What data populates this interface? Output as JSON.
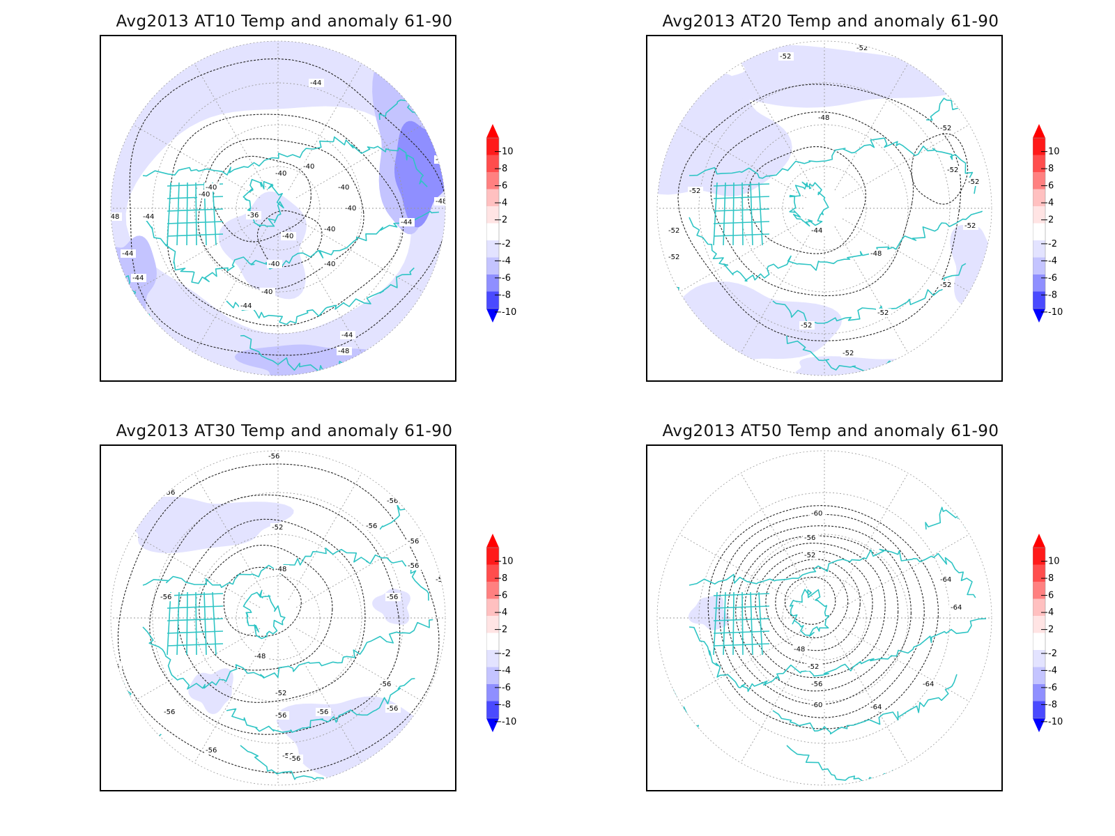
{
  "figure": {
    "colors": {
      "background": "#ffffff",
      "coastline": "#2ec4c4",
      "contour_line": "#222222",
      "grid_line": "#9a9a9a",
      "frame": "#000000"
    }
  },
  "legend": {
    "tick_labels": [
      "10",
      "8",
      "6",
      "4",
      "2",
      "-2",
      "-4",
      "-6",
      "-8",
      "-10"
    ],
    "bins": [
      {
        "range": [
          8,
          10
        ],
        "color": "#ff1a1a"
      },
      {
        "range": [
          6,
          8
        ],
        "color": "#ff4d4d"
      },
      {
        "range": [
          4,
          6
        ],
        "color": "#ff8080"
      },
      {
        "range": [
          2,
          4
        ],
        "color": "#ffc0c0"
      },
      {
        "range": [
          0,
          2
        ],
        "color": "#ffe4e4"
      },
      {
        "range": [
          -2,
          0
        ],
        "color": "#ffffff"
      },
      {
        "range": [
          -4,
          -2
        ],
        "color": "#e3e3ff"
      },
      {
        "range": [
          -6,
          -4
        ],
        "color": "#c4c4ff"
      },
      {
        "range": [
          -8,
          -6
        ],
        "color": "#8f8fff"
      },
      {
        "range": [
          -10,
          -8
        ],
        "color": "#4a4aff"
      }
    ],
    "over_color": "#ff0000",
    "under_color": "#0000ff"
  },
  "panels": [
    {
      "title": "Avg2013 AT10 Temp and anomaly 61-90",
      "contour_labels": [
        "-44",
        "-48",
        "-48",
        "-48",
        "-40",
        "-40",
        "-40",
        "-40",
        "-36",
        "-40",
        "-48",
        "-44",
        "-44",
        "-44",
        "-40",
        "-40",
        "-40",
        "-40",
        "-40",
        "-40",
        "-44",
        "-44",
        "-44",
        "-48"
      ]
    },
    {
      "title": "Avg2013 AT20 Temp and anomaly 61-90",
      "contour_labels": [
        "-52",
        "-52",
        "-52",
        "-52",
        "-48",
        "-52",
        "-52",
        "-52",
        "-52",
        "-52",
        "-44",
        "-48",
        "-52",
        "-52",
        "-52",
        "-52",
        "-52"
      ]
    },
    {
      "title": "Avg2013 AT30 Temp and anomaly 61-90",
      "contour_labels": [
        "-56",
        "-56",
        "-56",
        "-56",
        "-56",
        "-56",
        "-56",
        "-52",
        "-56",
        "-56",
        "-48",
        "-56",
        "-56",
        "-56",
        "-56",
        "-48",
        "-56",
        "-56",
        "-52",
        "-56",
        "-56",
        "-56",
        "-56",
        "-56",
        "-56",
        "-56"
      ]
    },
    {
      "title": "Avg2013 AT50 Temp and anomaly 61-90",
      "contour_labels": [
        "-60",
        "-56",
        "-52",
        "-64",
        "-64",
        "-48",
        "-52",
        "-56",
        "-60",
        "-64",
        "-64"
      ]
    }
  ]
}
